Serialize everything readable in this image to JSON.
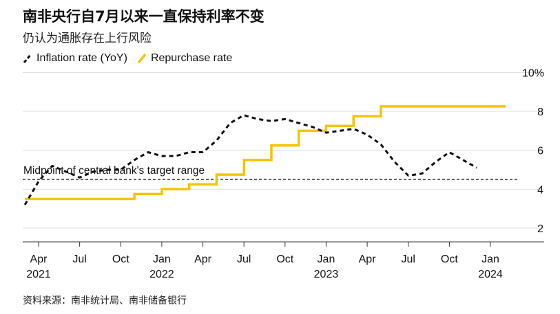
{
  "title": "南非央行自7月以来一直保持利率不变",
  "subtitle": "仍认为通胀存在上行风险",
  "source": "资料来源：南非统计局、南非储备银行",
  "chart_data": {
    "type": "line",
    "y_unit_label": "10%",
    "ylim": [
      1,
      10
    ],
    "y_ticks": [
      2,
      4,
      6,
      8
    ],
    "grid": true,
    "legend_position": "top-left",
    "x_ticks": [
      {
        "date": "2021-04",
        "month": "Apr",
        "year": "2021"
      },
      {
        "date": "2021-07",
        "month": "Jul",
        "year": ""
      },
      {
        "date": "2021-10",
        "month": "Oct",
        "year": ""
      },
      {
        "date": "2022-01",
        "month": "Jan",
        "year": "2022"
      },
      {
        "date": "2022-04",
        "month": "Apr",
        "year": ""
      },
      {
        "date": "2022-07",
        "month": "Jul",
        "year": ""
      },
      {
        "date": "2022-10",
        "month": "Oct",
        "year": ""
      },
      {
        "date": "2023-01",
        "month": "Jan",
        "year": "2023"
      },
      {
        "date": "2023-04",
        "month": "Apr",
        "year": ""
      },
      {
        "date": "2023-07",
        "month": "Jul",
        "year": ""
      },
      {
        "date": "2023-10",
        "month": "Oct",
        "year": ""
      },
      {
        "date": "2024-01",
        "month": "Jan",
        "year": "2024"
      }
    ],
    "series": [
      {
        "name": "Inflation rate (YoY)",
        "style": "dashed",
        "color": "#111111",
        "points": [
          [
            "2021-03",
            3.2
          ],
          [
            "2021-04",
            4.4
          ],
          [
            "2021-05",
            5.2
          ],
          [
            "2021-06",
            4.9
          ],
          [
            "2021-07",
            4.6
          ],
          [
            "2021-08",
            4.9
          ],
          [
            "2021-09",
            5.0
          ],
          [
            "2021-10",
            5.0
          ],
          [
            "2021-11",
            5.5
          ],
          [
            "2021-12",
            5.9
          ],
          [
            "2022-01",
            5.7
          ],
          [
            "2022-02",
            5.7
          ],
          [
            "2022-03",
            5.9
          ],
          [
            "2022-04",
            5.9
          ],
          [
            "2022-05",
            6.5
          ],
          [
            "2022-06",
            7.4
          ],
          [
            "2022-07",
            7.8
          ],
          [
            "2022-08",
            7.6
          ],
          [
            "2022-09",
            7.5
          ],
          [
            "2022-10",
            7.6
          ],
          [
            "2022-11",
            7.4
          ],
          [
            "2022-12",
            7.2
          ],
          [
            "2023-01",
            6.9
          ],
          [
            "2023-02",
            7.0
          ],
          [
            "2023-03",
            7.1
          ],
          [
            "2023-04",
            6.8
          ],
          [
            "2023-05",
            6.3
          ],
          [
            "2023-06",
            5.4
          ],
          [
            "2023-07",
            4.7
          ],
          [
            "2023-08",
            4.8
          ],
          [
            "2023-09",
            5.4
          ],
          [
            "2023-10",
            5.9
          ],
          [
            "2023-11",
            5.5
          ],
          [
            "2023-12",
            5.1
          ]
        ]
      },
      {
        "name": "Repurchase rate",
        "style": "step",
        "color": "#f5c400",
        "points": [
          [
            "2021-03",
            3.5
          ],
          [
            "2021-11",
            3.75
          ],
          [
            "2022-01",
            4.0
          ],
          [
            "2022-03",
            4.25
          ],
          [
            "2022-05",
            4.75
          ],
          [
            "2022-07",
            5.5
          ],
          [
            "2022-09",
            6.25
          ],
          [
            "2022-11",
            7.0
          ],
          [
            "2023-01",
            7.25
          ],
          [
            "2023-03",
            7.75
          ],
          [
            "2023-05",
            8.25
          ],
          [
            "2024-01",
            8.25
          ]
        ]
      }
    ],
    "annotations": [
      {
        "text": "Midpoint of central bank's target range",
        "y": 4.5,
        "style": "dashed"
      }
    ]
  }
}
